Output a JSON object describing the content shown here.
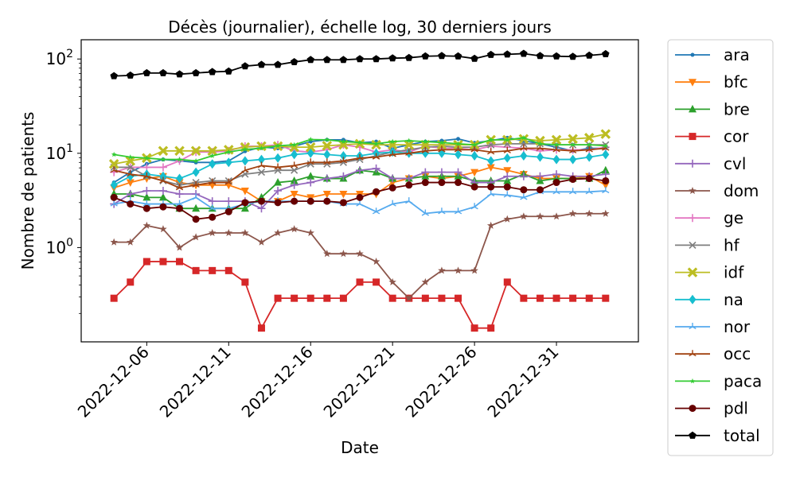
{
  "chart_data": {
    "type": "line",
    "title": "Décès (journalier), échelle log, 30 derniers jours",
    "xlabel": "Date",
    "ylabel": "Nombre de patients",
    "yscale": "log",
    "ylim": [
      0.1,
      160
    ],
    "xlim": [
      "2022-12-02",
      "2023-01-05"
    ],
    "grid": false,
    "legend_position": "outside-right",
    "x_tick_labels": [
      "2022-12-06",
      "2022-12-11",
      "2022-12-16",
      "2022-12-21",
      "2022-12-26",
      "2022-12-31"
    ],
    "y_tick_labels": [
      {
        "base": "10",
        "exp": "0",
        "value": 1
      },
      {
        "base": "10",
        "exp": "1",
        "value": 10
      },
      {
        "base": "10",
        "exp": "2",
        "value": 100
      }
    ],
    "x": [
      "2022-12-04",
      "2022-12-05",
      "2022-12-06",
      "2022-12-07",
      "2022-12-08",
      "2022-12-09",
      "2022-12-10",
      "2022-12-11",
      "2022-12-12",
      "2022-12-13",
      "2022-12-14",
      "2022-12-15",
      "2022-12-16",
      "2022-12-17",
      "2022-12-18",
      "2022-12-19",
      "2022-12-20",
      "2022-12-21",
      "2022-12-22",
      "2022-12-23",
      "2022-12-24",
      "2022-12-25",
      "2022-12-26",
      "2022-12-27",
      "2022-12-28",
      "2022-12-29",
      "2022-12-30",
      "2022-12-31",
      "2023-01-01",
      "2023-01-02",
      "2023-01-03"
    ],
    "series": [
      {
        "name": "ara",
        "color": "#1f77b4",
        "marker": "point",
        "values": [
          4.9,
          6.3,
          7.7,
          8.6,
          8.3,
          8.0,
          8.0,
          8.3,
          10.5,
          11.6,
          11.3,
          11.9,
          13.3,
          13.9,
          13.9,
          12.9,
          13.3,
          11.3,
          12.3,
          13.3,
          13.6,
          14.2,
          12.9,
          13.6,
          14.6,
          13.6,
          12.6,
          11.6,
          10.6,
          11.3,
          11.3
        ]
      },
      {
        "name": "bfc",
        "color": "#ff7f0e",
        "marker": "triangle-down",
        "values": [
          4.3,
          4.9,
          5.4,
          5.7,
          4.9,
          4.6,
          4.6,
          4.6,
          4.0,
          3.1,
          3.1,
          3.7,
          3.4,
          3.7,
          3.7,
          3.7,
          3.7,
          4.9,
          5.4,
          5.7,
          5.4,
          5.7,
          6.3,
          7.1,
          6.6,
          6.0,
          5.4,
          5.4,
          5.4,
          5.7,
          4.6
        ]
      },
      {
        "name": "bre",
        "color": "#2ca02c",
        "marker": "triangle-up",
        "values": [
          3.7,
          3.7,
          3.4,
          3.4,
          2.6,
          2.6,
          2.6,
          2.6,
          2.6,
          3.4,
          4.9,
          5.1,
          5.7,
          5.4,
          5.4,
          6.6,
          6.3,
          5.4,
          5.4,
          5.7,
          5.7,
          5.7,
          5.1,
          5.1,
          5.1,
          6.0,
          5.1,
          5.4,
          5.4,
          5.4,
          6.6
        ]
      },
      {
        "name": "cor",
        "color": "#d62728",
        "marker": "square",
        "values": [
          0.29,
          0.43,
          0.71,
          0.71,
          0.71,
          0.57,
          0.57,
          0.57,
          0.43,
          0.14,
          0.29,
          0.29,
          0.29,
          0.29,
          0.29,
          0.43,
          0.43,
          0.29,
          0.29,
          0.29,
          0.29,
          0.29,
          0.14,
          0.14,
          0.43,
          0.29,
          0.29,
          0.29,
          0.29,
          0.29,
          0.29
        ]
      },
      {
        "name": "cvl",
        "color": "#9467bd",
        "marker": "plus",
        "values": [
          2.9,
          3.7,
          4.0,
          4.0,
          3.7,
          3.7,
          3.1,
          3.1,
          3.1,
          2.6,
          4.0,
          4.6,
          4.9,
          5.4,
          5.7,
          6.6,
          6.9,
          5.4,
          5.4,
          6.3,
          6.3,
          6.3,
          4.9,
          4.9,
          5.7,
          5.7,
          5.7,
          6.0,
          5.7,
          5.7,
          6.0
        ]
      },
      {
        "name": "dom",
        "color": "#8c564b",
        "marker": "star",
        "values": [
          1.14,
          1.14,
          1.71,
          1.57,
          1.0,
          1.29,
          1.43,
          1.43,
          1.43,
          1.14,
          1.43,
          1.57,
          1.43,
          0.86,
          0.86,
          0.86,
          0.71,
          0.43,
          0.29,
          0.43,
          0.57,
          0.57,
          0.57,
          1.71,
          2.0,
          2.14,
          2.14,
          2.14,
          2.29,
          2.29,
          2.29
        ]
      },
      {
        "name": "ge",
        "color": "#e377c2",
        "marker": "plus",
        "values": [
          6.3,
          7.1,
          7.1,
          7.1,
          8.3,
          10.3,
          10.3,
          10.6,
          11.9,
          11.9,
          12.3,
          10.6,
          10.3,
          10.9,
          12.3,
          11.6,
          10.3,
          10.9,
          10.3,
          11.9,
          11.3,
          11.3,
          10.9,
          11.9,
          11.6,
          11.3,
          10.6,
          10.9,
          10.9,
          10.9,
          11.6
        ]
      },
      {
        "name": "hf",
        "color": "#7f7f7f",
        "marker": "x",
        "values": [
          7.1,
          7.1,
          5.7,
          5.1,
          4.6,
          4.9,
          5.1,
          5.1,
          6.0,
          6.3,
          6.6,
          6.6,
          7.7,
          7.7,
          8.0,
          8.6,
          9.4,
          10.3,
          10.9,
          11.6,
          11.9,
          11.6,
          11.6,
          12.3,
          12.6,
          12.6,
          12.6,
          12.3,
          12.3,
          12.3,
          12.3
        ]
      },
      {
        "name": "idf",
        "color": "#bcbd22",
        "marker": "x-filled",
        "values": [
          7.7,
          8.3,
          8.9,
          10.6,
          10.6,
          10.6,
          10.6,
          10.9,
          11.6,
          11.9,
          11.9,
          11.6,
          11.6,
          12.0,
          12.3,
          12.6,
          12.3,
          12.3,
          12.3,
          12.3,
          12.3,
          12.3,
          12.3,
          13.9,
          13.9,
          14.2,
          13.6,
          13.9,
          14.2,
          14.6,
          16.0
        ]
      },
      {
        "name": "na",
        "color": "#17becf",
        "marker": "diamond",
        "values": [
          4.6,
          5.7,
          6.0,
          5.7,
          5.4,
          6.3,
          7.7,
          8.0,
          8.3,
          8.6,
          8.9,
          9.7,
          10.0,
          9.7,
          9.4,
          9.4,
          10.0,
          10.3,
          10.0,
          10.0,
          10.0,
          9.7,
          9.4,
          8.3,
          8.9,
          9.4,
          9.1,
          8.6,
          8.6,
          9.1,
          9.7
        ]
      },
      {
        "name": "nor",
        "color": "#55aaee",
        "marker": "tri",
        "values": [
          2.9,
          3.1,
          2.9,
          2.9,
          2.9,
          3.4,
          2.6,
          2.6,
          2.9,
          3.1,
          3.1,
          3.1,
          3.1,
          3.1,
          2.9,
          2.9,
          2.4,
          2.9,
          3.1,
          2.3,
          2.4,
          2.4,
          2.7,
          3.7,
          3.6,
          3.4,
          3.9,
          3.9,
          3.9,
          3.9,
          4.0
        ]
      },
      {
        "name": "occ",
        "color": "#a0400e",
        "marker": "tri",
        "values": [
          6.6,
          6.0,
          5.7,
          5.1,
          4.3,
          4.6,
          4.9,
          4.9,
          6.6,
          7.4,
          7.1,
          7.4,
          8.0,
          8.0,
          8.3,
          8.9,
          9.1,
          9.7,
          10.0,
          10.6,
          10.9,
          10.9,
          10.9,
          10.3,
          10.6,
          11.3,
          11.3,
          10.9,
          10.6,
          10.9,
          11.3
        ]
      },
      {
        "name": "paca",
        "color": "#33cc33",
        "marker": "star-small",
        "values": [
          9.7,
          9.1,
          8.9,
          8.6,
          8.6,
          8.3,
          9.4,
          10.3,
          11.0,
          11.3,
          12.0,
          12.3,
          14.0,
          13.9,
          13.3,
          13.0,
          12.6,
          13.3,
          13.6,
          13.3,
          13.0,
          12.6,
          12.3,
          13.9,
          13.9,
          14.6,
          12.6,
          12.3,
          12.3,
          12.3,
          12.0
        ]
      },
      {
        "name": "pdl",
        "color": "#660000",
        "marker": "circle",
        "values": [
          3.4,
          2.9,
          2.6,
          2.7,
          2.6,
          2.0,
          2.1,
          2.4,
          3.0,
          3.1,
          3.0,
          3.1,
          3.1,
          3.1,
          3.0,
          3.4,
          3.9,
          4.3,
          4.6,
          4.9,
          4.9,
          4.9,
          4.4,
          4.4,
          4.4,
          4.1,
          4.1,
          4.9,
          5.3,
          5.4,
          5.1
        ]
      },
      {
        "name": "total",
        "color": "#000000",
        "marker": "pentagon",
        "values": [
          66,
          67,
          71,
          71,
          69,
          71,
          73,
          74,
          84,
          87,
          87,
          93,
          98,
          98,
          98,
          100,
          100,
          102,
          103,
          107,
          108,
          107,
          101,
          111,
          112,
          114,
          108,
          107,
          106,
          109,
          113
        ]
      }
    ]
  }
}
